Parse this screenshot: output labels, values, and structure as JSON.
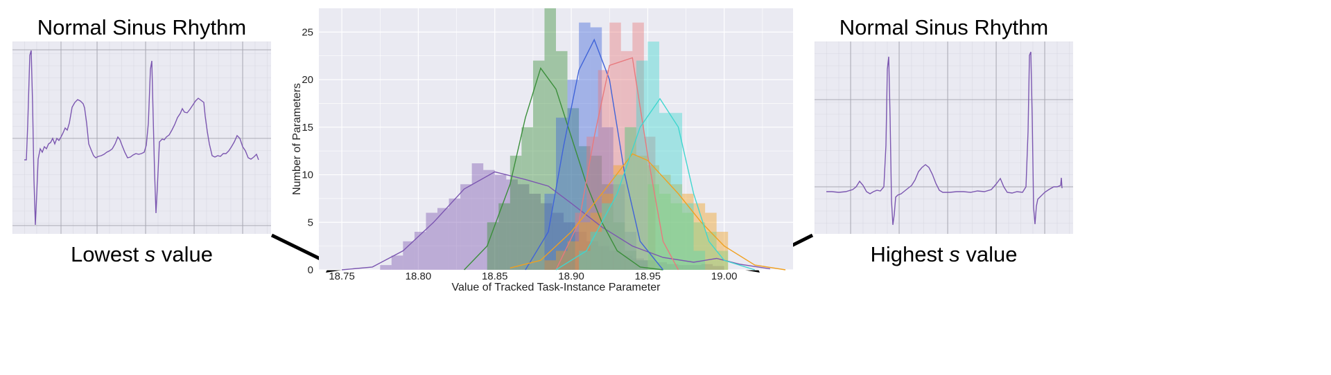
{
  "left_panel": {
    "title": "Normal Sinus Rhythm",
    "caption_before": "Lowest ",
    "caption_var": "s",
    "caption_after": " value"
  },
  "right_panel": {
    "title": "Normal Sinus Rhythm",
    "caption_before": "Highest ",
    "caption_var": "s",
    "caption_after": " value"
  },
  "colors": {
    "purple": "#7b56b0",
    "green": "#3a8e3a",
    "blue": "#3f63d8",
    "red": "#e8797d",
    "orange": "#f0a020",
    "cyan": "#3fd6cf",
    "lightgreen": "#7fcf7f",
    "ecg_line": "#7b56b0",
    "plot_bg": "#eaeaf2",
    "grid": "#ffffff"
  },
  "chart_data": {
    "type": "histogram",
    "xlabel": "Value of Tracked Task-Instance Parameter",
    "ylabel": "Number of Parameters",
    "xlim": [
      18.735,
      19.045
    ],
    "ylim": [
      0,
      27.5
    ],
    "x_ticks": [
      "18.75",
      "18.80",
      "18.85",
      "18.90",
      "18.95",
      "19.00"
    ],
    "x_tick_values": [
      18.75,
      18.8,
      18.85,
      18.9,
      18.95,
      19.0
    ],
    "y_ticks": [
      "0",
      "5",
      "10",
      "15",
      "20",
      "25"
    ],
    "y_tick_values": [
      0,
      5,
      10,
      15,
      20,
      25
    ],
    "grid": true,
    "bin_width": 0.0075,
    "series": [
      {
        "color_key": "purple",
        "bin_starts": [
          18.775,
          18.7825,
          18.79,
          18.7975,
          18.805,
          18.8125,
          18.82,
          18.8275,
          18.835,
          18.8425,
          18.85,
          18.8575,
          18.865,
          18.8725,
          18.88,
          18.8875,
          18.895,
          18.9025,
          18.91,
          18.9175,
          18.925,
          18.9325,
          18.94,
          18.9475,
          18.955,
          18.9625,
          18.97,
          18.9775,
          18.985,
          18.9925
        ],
        "counts": [
          0.5,
          1.5,
          3,
          4,
          6,
          6.5,
          7.5,
          9,
          11.2,
          10.5,
          10,
          9.5,
          9,
          8,
          7,
          6,
          5,
          4,
          3,
          2.5,
          2,
          1.5,
          1.2,
          1,
          0.8,
          0.6,
          0.5,
          0.5,
          0.6,
          0.4
        ],
        "kde": [
          [
            18.75,
            0
          ],
          [
            18.77,
            0.3
          ],
          [
            18.79,
            2
          ],
          [
            18.81,
            5
          ],
          [
            18.83,
            8.5
          ],
          [
            18.85,
            10.3
          ],
          [
            18.87,
            9.5
          ],
          [
            18.885,
            8.8
          ],
          [
            18.9,
            7
          ],
          [
            18.92,
            4.5
          ],
          [
            18.94,
            2.5
          ],
          [
            18.96,
            1.3
          ],
          [
            18.98,
            0.8
          ],
          [
            18.995,
            1.2
          ],
          [
            19.01,
            0.6
          ],
          [
            19.03,
            0.1
          ]
        ]
      },
      {
        "color_key": "green",
        "bin_starts": [
          18.845,
          18.8525,
          18.86,
          18.8675,
          18.875,
          18.8825,
          18.89,
          18.8975,
          18.905,
          18.9125,
          18.92,
          18.9275,
          18.935,
          18.9425
        ],
        "counts": [
          5,
          7,
          12,
          15,
          22,
          28.5,
          23,
          17,
          13,
          12,
          9,
          5,
          2,
          1
        ],
        "kde": [
          [
            18.83,
            0
          ],
          [
            18.845,
            2.5
          ],
          [
            18.86,
            9
          ],
          [
            18.87,
            16
          ],
          [
            18.88,
            21.2
          ],
          [
            18.89,
            19
          ],
          [
            18.9,
            14
          ],
          [
            18.91,
            9
          ],
          [
            18.92,
            5
          ],
          [
            18.93,
            2
          ],
          [
            18.945,
            0.3
          ],
          [
            18.96,
            0
          ]
        ]
      },
      {
        "color_key": "blue",
        "bin_starts": [
          18.8825,
          18.89,
          18.8975,
          18.905,
          18.9125,
          18.92,
          18.9275,
          18.935,
          18.9425
        ],
        "counts": [
          8,
          16,
          20,
          26,
          25.5,
          15,
          9,
          4,
          1
        ],
        "kde": [
          [
            18.87,
            0
          ],
          [
            18.885,
            4
          ],
          [
            18.895,
            13
          ],
          [
            18.905,
            21
          ],
          [
            18.915,
            24.2
          ],
          [
            18.925,
            20
          ],
          [
            18.935,
            10
          ],
          [
            18.945,
            3
          ],
          [
            18.96,
            0
          ]
        ]
      },
      {
        "color_key": "red",
        "bin_starts": [
          18.9025,
          18.91,
          18.9175,
          18.925,
          18.9325,
          18.94,
          18.9475
        ],
        "counts": [
          6,
          14,
          21,
          26,
          23,
          26,
          14
        ],
        "kde": [
          [
            18.89,
            0
          ],
          [
            18.905,
            5
          ],
          [
            18.915,
            14
          ],
          [
            18.925,
            21.5
          ],
          [
            18.94,
            22.3
          ],
          [
            18.95,
            12
          ],
          [
            18.96,
            3
          ],
          [
            18.97,
            0
          ]
        ]
      },
      {
        "color_key": "orange",
        "bin_starts": [
          18.8825,
          18.89,
          18.8975,
          18.905,
          18.9125,
          18.92,
          18.9275,
          18.935,
          18.9425,
          18.95,
          18.9575,
          18.965,
          18.9725,
          18.98,
          18.9875,
          18.995
        ],
        "counts": [
          1,
          2,
          3,
          5,
          6,
          8,
          11,
          15,
          12,
          11,
          10,
          9,
          8,
          7,
          6,
          4
        ],
        "kde": [
          [
            18.86,
            0.2
          ],
          [
            18.88,
            1
          ],
          [
            18.9,
            4
          ],
          [
            18.92,
            8
          ],
          [
            18.94,
            12.2
          ],
          [
            18.95,
            11.5
          ],
          [
            18.97,
            8
          ],
          [
            18.985,
            5
          ],
          [
            19.0,
            2.5
          ],
          [
            19.02,
            0.5
          ],
          [
            19.04,
            0
          ]
        ]
      },
      {
        "color_key": "cyan",
        "bin_starts": [
          18.905,
          18.9125,
          18.92,
          18.9275,
          18.935,
          18.9425,
          18.95,
          18.9575,
          18.965,
          18.9725,
          18.98
        ],
        "counts": [
          2,
          4,
          7,
          10,
          15,
          22,
          24,
          16.5,
          16.5,
          7,
          2
        ],
        "kde": [
          [
            18.89,
            0
          ],
          [
            18.91,
            2
          ],
          [
            18.93,
            8
          ],
          [
            18.945,
            15
          ],
          [
            18.958,
            18
          ],
          [
            18.97,
            15
          ],
          [
            18.98,
            8
          ],
          [
            18.99,
            3
          ],
          [
            19.0,
            1
          ],
          [
            19.02,
            0
          ]
        ]
      },
      {
        "color_key": "lightgreen",
        "bin_starts": [
          18.95,
          18.9575,
          18.965,
          18.9725,
          18.98,
          18.9875,
          18.995
        ],
        "counts": [
          9,
          8,
          7,
          6,
          5,
          4,
          2
        ],
        "kde": []
      }
    ]
  }
}
